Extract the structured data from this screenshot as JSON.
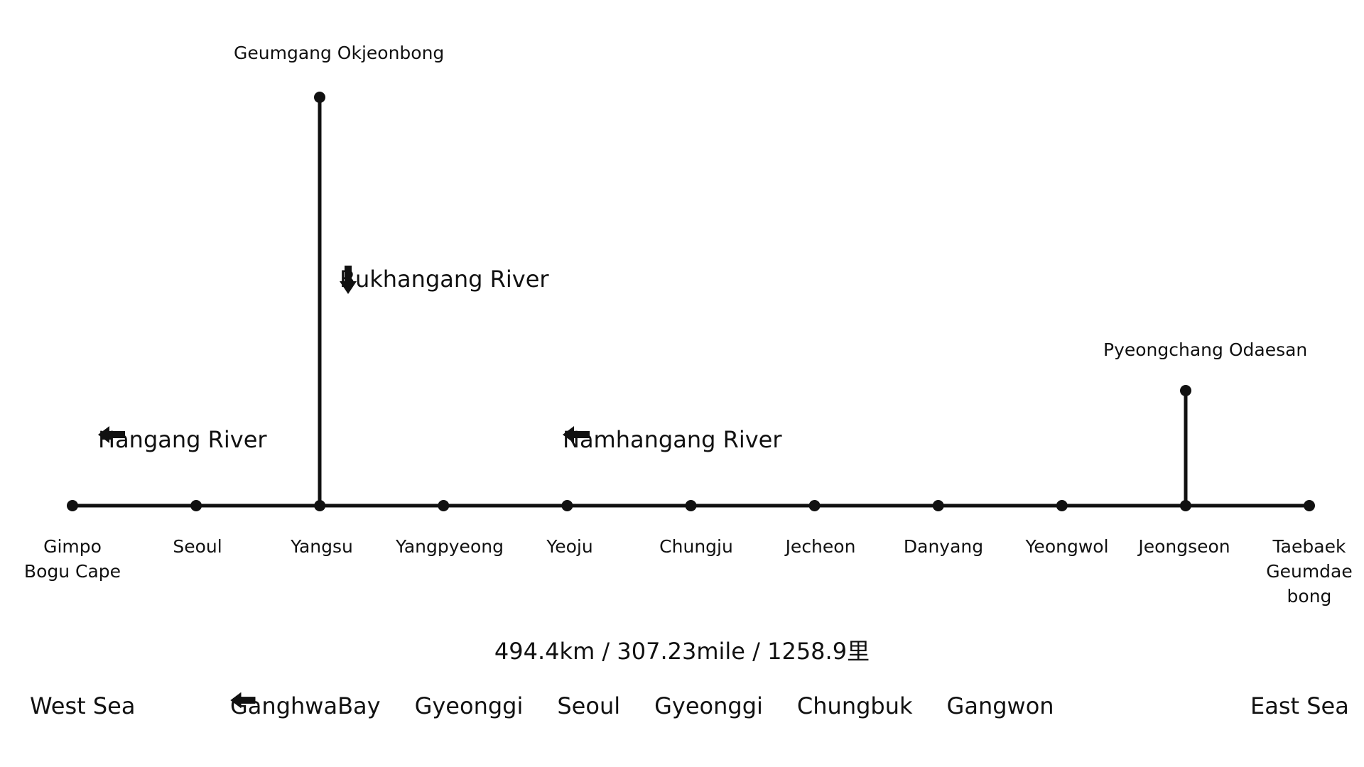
{
  "stops": [
    {
      "id": "gimpo",
      "name": "Gimpo\nBogu Cape"
    },
    {
      "id": "seoul",
      "name": "Seoul"
    },
    {
      "id": "yangsu",
      "name": "Yangsu"
    },
    {
      "id": "yangpyeong",
      "name": "Yangpyeong"
    },
    {
      "id": "yeoju",
      "name": "Yeoju"
    },
    {
      "id": "chungju",
      "name": "Chungju"
    },
    {
      "id": "jecheon",
      "name": "Jecheon"
    },
    {
      "id": "danyang",
      "name": "Danyang"
    },
    {
      "id": "yeongwol",
      "name": "Yeongwol"
    },
    {
      "id": "jeongseon",
      "name": "Jeongseon"
    },
    {
      "id": "taebaek",
      "name": "Taebaek\nGeumdae\nbong"
    }
  ],
  "branches": [
    {
      "id": "okjeonbong",
      "from_stop": "yangsu",
      "name": "Geumgang Okjeonbong"
    },
    {
      "id": "odaesan",
      "from_stop": "jeongseon",
      "name": "Pyeongchang Odaesan"
    }
  ],
  "rivers": {
    "hangang": "Hangang River",
    "bukhangang": "Bukhangang River",
    "namhangang": "Namhangang River"
  },
  "distance": "494.4km / 307.23mile / 1258.9里",
  "seas": {
    "west": "West Sea",
    "east": "East Sea"
  },
  "regions": [
    "GanghwaBay",
    "Gyeonggi",
    "Seoul",
    "Gyeonggi",
    "Chungbuk",
    "Gangwon"
  ],
  "icons": {
    "left_arrow": "arrow-left-icon",
    "down_arrow": "arrow-down-icon"
  }
}
